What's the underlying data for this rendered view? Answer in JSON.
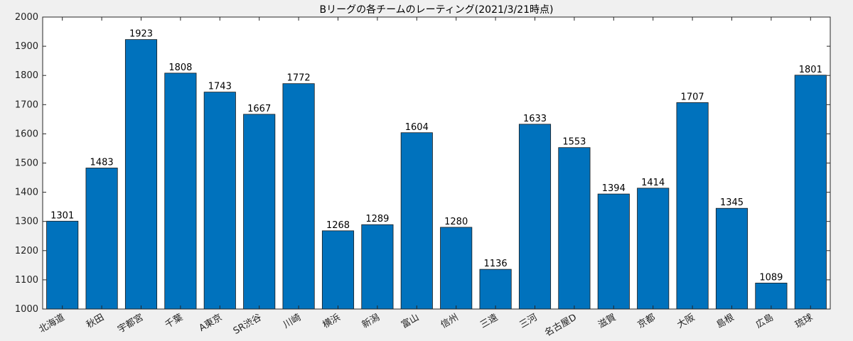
{
  "chart_data": {
    "type": "bar",
    "title": "Bリーグの各チームのレーティング(2021/3/21時点)",
    "xlabel": "",
    "ylabel": "",
    "ylim": [
      1000,
      2000
    ],
    "yticks": [
      1000,
      1100,
      1200,
      1300,
      1400,
      1500,
      1600,
      1700,
      1800,
      1900,
      2000
    ],
    "grid": false,
    "bar_color": "#0072BD",
    "categories": [
      "北海道",
      "秋田",
      "宇都宮",
      "千葉",
      "A東京",
      "SR渋谷",
      "川崎",
      "横浜",
      "新潟",
      "富山",
      "信州",
      "三遠",
      "三河",
      "名古屋D",
      "滋賀",
      "京都",
      "大阪",
      "島根",
      "広島",
      "琉球"
    ],
    "values": [
      1301,
      1483,
      1923,
      1808,
      1743,
      1667,
      1772,
      1268,
      1289,
      1604,
      1280,
      1136,
      1633,
      1553,
      1394,
      1414,
      1707,
      1345,
      1089,
      1801
    ]
  }
}
